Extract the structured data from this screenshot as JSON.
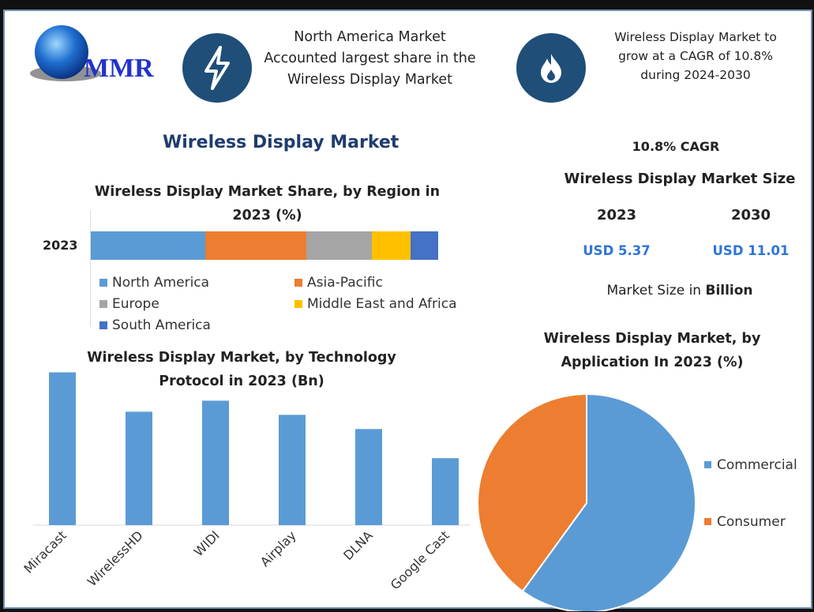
{
  "logo": {
    "text": "MMR"
  },
  "info": [
    {
      "icon": "lightning-icon",
      "text": "North America Market Accounted largest share in the Wireless Display Market"
    },
    {
      "icon": "flame-icon",
      "text": "Wireless Display Market to grow at a CAGR of 10.8% during 2024-2030"
    }
  ],
  "main_title": "Wireless Display Market",
  "market_size": {
    "cagr": "10.8% CAGR",
    "title": "Wireless Display Market Size",
    "years": [
      "2023",
      "2030"
    ],
    "values": [
      "USD 5.37",
      "USD 11.01"
    ],
    "note_prefix": "Market Size in ",
    "note_bold": "Billion"
  },
  "colors": {
    "blue": "#5b9bd5",
    "orange": "#ed7d31",
    "gray": "#a5a5a5",
    "yellow": "#ffc000",
    "darkblue": "#4472c4",
    "navy": "#1f3c6e",
    "value_blue": "#2e75d6"
  },
  "chart_data": [
    {
      "type": "bar",
      "stacked": true,
      "orientation": "horizontal",
      "title": "Wireless Display Market Share, by Region in 2023 (%)",
      "categories": [
        "2023"
      ],
      "series": [
        {
          "name": "North America",
          "values": [
            33
          ],
          "color": "#5b9bd5"
        },
        {
          "name": "Asia-Pacific",
          "values": [
            29
          ],
          "color": "#ed7d31"
        },
        {
          "name": "Europe",
          "values": [
            19
          ],
          "color": "#a5a5a5"
        },
        {
          "name": "Middle East and Africa",
          "values": [
            11
          ],
          "color": "#ffc000"
        },
        {
          "name": "South America",
          "values": [
            8
          ],
          "color": "#4472c4"
        }
      ],
      "legend": "bottom"
    },
    {
      "type": "bar",
      "title": "Wireless Display Market, by Technology Protocol in 2023 (Bn)",
      "categories": [
        "Miracast",
        "WirelessHD",
        "WIDI",
        "Airplay",
        "DLNA",
        "Google Cast"
      ],
      "values": [
        1.94,
        1.44,
        1.58,
        1.4,
        1.22,
        0.85
      ],
      "color": "#5b9bd5",
      "ylim": [
        0,
        2.0
      ]
    },
    {
      "type": "pie",
      "title": "Wireless Display Market, by Application In 2023 (%)",
      "categories": [
        "Commercial",
        "Consumer"
      ],
      "values": [
        60,
        40
      ],
      "colors": [
        "#5b9bd5",
        "#ed7d31"
      ],
      "legend": "right"
    }
  ]
}
